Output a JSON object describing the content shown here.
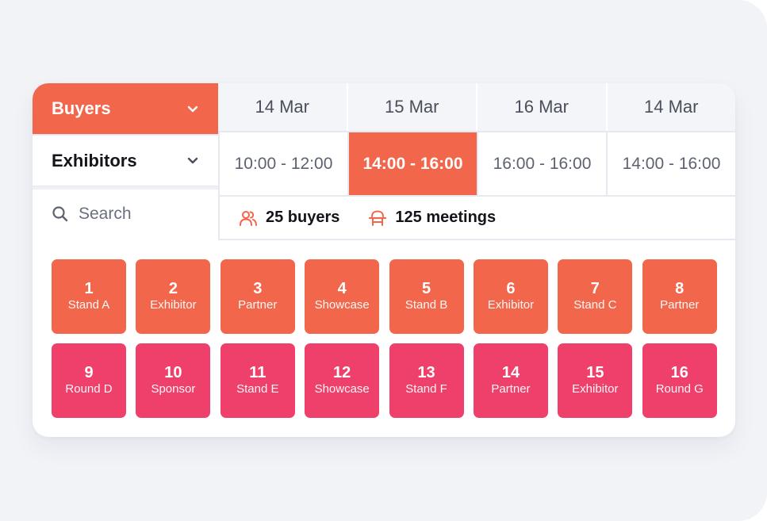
{
  "filters": {
    "buyers": {
      "label": "Buyers"
    },
    "exhibitors": {
      "label": "Exhibitors"
    }
  },
  "search": {
    "placeholder": "Search",
    "value": ""
  },
  "dates": [
    "14 Mar",
    "15 Mar",
    "16 Mar",
    "14 Mar"
  ],
  "times": [
    "10:00 - 12:00",
    "14:00 - 16:00",
    "16:00 - 16:00",
    "14:00 - 16:00"
  ],
  "active_time_index": 1,
  "stats": {
    "buyers": "25 buyers",
    "meetings": "125 meetings"
  },
  "tiles": [
    {
      "number": "1",
      "label": "Stand A",
      "color": "orange"
    },
    {
      "number": "2",
      "label": "Exhibitor",
      "color": "orange"
    },
    {
      "number": "3",
      "label": "Partner",
      "color": "orange"
    },
    {
      "number": "4",
      "label": "Showcase",
      "color": "orange"
    },
    {
      "number": "5",
      "label": "Stand B",
      "color": "orange"
    },
    {
      "number": "6",
      "label": "Exhibitor",
      "color": "orange"
    },
    {
      "number": "7",
      "label": "Stand C",
      "color": "orange"
    },
    {
      "number": "8",
      "label": "Partner",
      "color": "orange"
    },
    {
      "number": "9",
      "label": "Round D",
      "color": "pink"
    },
    {
      "number": "10",
      "label": "Sponsor",
      "color": "pink"
    },
    {
      "number": "11",
      "label": "Stand E",
      "color": "pink"
    },
    {
      "number": "12",
      "label": "Showcase",
      "color": "pink"
    },
    {
      "number": "13",
      "label": "Stand F",
      "color": "pink"
    },
    {
      "number": "14",
      "label": "Partner",
      "color": "pink"
    },
    {
      "number": "15",
      "label": "Exhibitor",
      "color": "pink"
    },
    {
      "number": "16",
      "label": "Round G",
      "color": "pink"
    }
  ],
  "colors": {
    "accent": "#f2664b",
    "pink": "#ef3f6b",
    "background": "#f1f3f7"
  },
  "icons": {
    "filter_chevron": "chevron-down-icon",
    "search": "search-icon",
    "buyers": "users-icon",
    "meetings": "meeting-table-icon"
  }
}
